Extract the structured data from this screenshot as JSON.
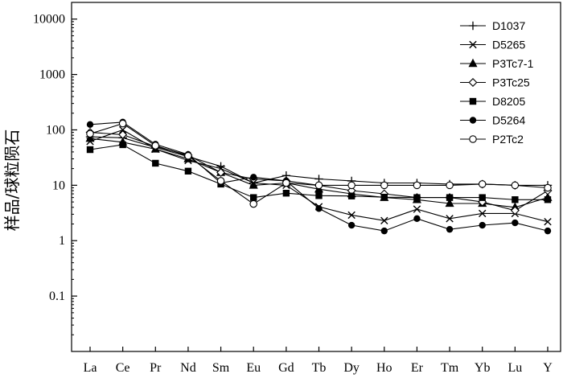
{
  "chart_data": {
    "type": "line",
    "title": "",
    "xlabel": "",
    "ylabel": "样品/球粒陨石",
    "yscale": "log",
    "ylim": [
      0.01,
      20000
    ],
    "yticks": [
      {
        "value": 0.1,
        "label": "0.1"
      },
      {
        "value": 1,
        "label": "1"
      },
      {
        "value": 10,
        "label": "10"
      },
      {
        "value": 100,
        "label": "100"
      },
      {
        "value": 1000,
        "label": "1000"
      },
      {
        "value": 10000,
        "label": "10000"
      }
    ],
    "categories": [
      "La",
      "Ce",
      "Pr",
      "Nd",
      "Sm",
      "Eu",
      "Gd",
      "Tb",
      "Dy",
      "Ho",
      "Er",
      "Tm",
      "Yb",
      "Lu",
      "Y"
    ],
    "legend_position": "top-right",
    "grid": false,
    "series": [
      {
        "name": "D1037",
        "marker": "plus",
        "values": [
          75,
          72,
          48,
          33,
          22,
          11,
          15,
          13,
          12,
          11,
          11,
          10.5,
          10.5,
          10,
          10
        ]
      },
      {
        "name": "D5265",
        "marker": "x",
        "values": [
          62,
          100,
          45,
          28,
          20,
          11,
          10,
          4.1,
          2.9,
          2.3,
          3.7,
          2.5,
          3.1,
          3.1,
          2.2
        ]
      },
      {
        "name": "P3Tc7-1",
        "marker": "triangle",
        "values": [
          70,
          60,
          45,
          30,
          17,
          10,
          11,
          8.5,
          7,
          6,
          5.5,
          4.7,
          4.7,
          4,
          6
        ]
      },
      {
        "name": "P3Tc25",
        "marker": "diamond-open",
        "values": [
          90,
          82,
          50,
          35,
          17,
          13,
          12,
          10,
          8,
          7,
          6,
          6,
          5,
          3.5,
          8
        ]
      },
      {
        "name": "D8205",
        "marker": "square",
        "values": [
          44,
          54,
          25,
          18,
          10.5,
          6,
          7.2,
          6.5,
          6.4,
          6.1,
          6,
          6,
          6,
          5.5,
          5.5
        ]
      },
      {
        "name": "D5264",
        "marker": "circle",
        "values": [
          125,
          138,
          55,
          36,
          11,
          14,
          12,
          3.8,
          1.9,
          1.5,
          2.5,
          1.6,
          1.9,
          2.1,
          1.5
        ]
      },
      {
        "name": "P2Tc2",
        "marker": "circle-open",
        "values": [
          85,
          130,
          52,
          34,
          12,
          4.6,
          11,
          10,
          10,
          10,
          10,
          10,
          10.5,
          10,
          9
        ]
      }
    ]
  }
}
